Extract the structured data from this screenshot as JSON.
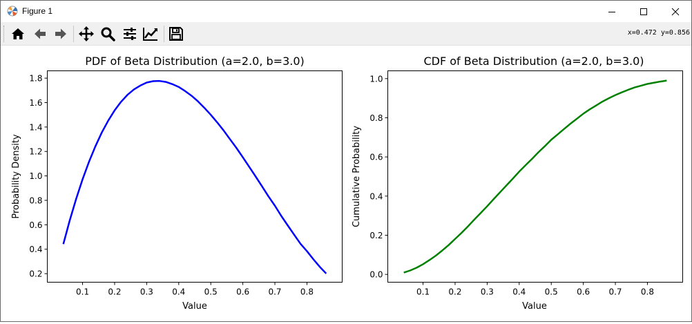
{
  "window": {
    "title": "Figure 1"
  },
  "toolbar": {
    "buttons": [
      "home-icon",
      "back-icon",
      "forward-icon",
      "pan-icon",
      "zoom-icon",
      "configure-subplots-icon",
      "edit-axis-icon",
      "save-icon"
    ],
    "coords_text": "x=0.472  y=0.856"
  },
  "chart_data": [
    {
      "type": "line",
      "title": "PDF of Beta Distribution (a=2.0, b=3.0)",
      "xlabel": "Value",
      "ylabel": "Probability Density",
      "xlim": [
        -0.01,
        0.91
      ],
      "ylim": [
        0.13,
        1.86
      ],
      "xticks": [
        "0.1",
        "0.2",
        "0.3",
        "0.4",
        "0.5",
        "0.6",
        "0.7",
        "0.8"
      ],
      "yticks": [
        "0.2",
        "0.4",
        "0.6",
        "0.8",
        "1.0",
        "1.2",
        "1.4",
        "1.6",
        "1.8"
      ],
      "grid": false,
      "color": "#0000ff",
      "x": [
        0.04,
        0.06,
        0.08,
        0.1,
        0.12,
        0.14,
        0.16,
        0.18,
        0.2,
        0.22,
        0.24,
        0.26,
        0.28,
        0.3,
        0.32,
        0.34,
        0.36,
        0.38,
        0.4,
        0.42,
        0.44,
        0.46,
        0.48,
        0.5,
        0.52,
        0.54,
        0.56,
        0.58,
        0.6,
        0.62,
        0.64,
        0.66,
        0.68,
        0.7,
        0.72,
        0.74,
        0.76,
        0.78,
        0.8,
        0.82,
        0.84,
        0.86
      ],
      "y": [
        0.442,
        0.636,
        0.812,
        0.972,
        1.115,
        1.242,
        1.355,
        1.452,
        1.536,
        1.606,
        1.663,
        1.707,
        1.739,
        1.764,
        1.775,
        1.777,
        1.769,
        1.751,
        1.728,
        1.694,
        1.656,
        1.61,
        1.557,
        1.5,
        1.438,
        1.372,
        1.3,
        1.229,
        1.152,
        1.074,
        0.995,
        0.914,
        0.832,
        0.756,
        0.672,
        0.595,
        0.519,
        0.444,
        0.384,
        0.318,
        0.256,
        0.201
      ]
    },
    {
      "type": "line",
      "title": "CDF of Beta Distribution (a=2.0, b=3.0)",
      "xlabel": "Value",
      "ylabel": "Cumulative Probability",
      "xlim": [
        -0.01,
        0.91
      ],
      "ylim": [
        -0.04,
        1.04
      ],
      "xticks": [
        "0.1",
        "0.2",
        "0.3",
        "0.4",
        "0.5",
        "0.6",
        "0.7",
        "0.8"
      ],
      "yticks": [
        "0.0",
        "0.2",
        "0.4",
        "0.6",
        "0.8",
        "1.0"
      ],
      "grid": false,
      "color": "#008000",
      "x": [
        0.04,
        0.06,
        0.08,
        0.1,
        0.12,
        0.14,
        0.16,
        0.18,
        0.2,
        0.22,
        0.24,
        0.26,
        0.28,
        0.3,
        0.32,
        0.34,
        0.36,
        0.38,
        0.4,
        0.42,
        0.44,
        0.46,
        0.48,
        0.5,
        0.52,
        0.54,
        0.56,
        0.58,
        0.6,
        0.62,
        0.64,
        0.66,
        0.68,
        0.7,
        0.72,
        0.74,
        0.76,
        0.78,
        0.8,
        0.82,
        0.84,
        0.86
      ],
      "y": [
        0.009,
        0.02,
        0.034,
        0.052,
        0.073,
        0.096,
        0.122,
        0.15,
        0.181,
        0.212,
        0.245,
        0.28,
        0.314,
        0.348,
        0.384,
        0.419,
        0.454,
        0.489,
        0.525,
        0.558,
        0.59,
        0.624,
        0.655,
        0.688,
        0.715,
        0.743,
        0.77,
        0.795,
        0.821,
        0.843,
        0.863,
        0.883,
        0.9,
        0.916,
        0.93,
        0.943,
        0.955,
        0.964,
        0.973,
        0.979,
        0.985,
        0.99
      ]
    }
  ]
}
